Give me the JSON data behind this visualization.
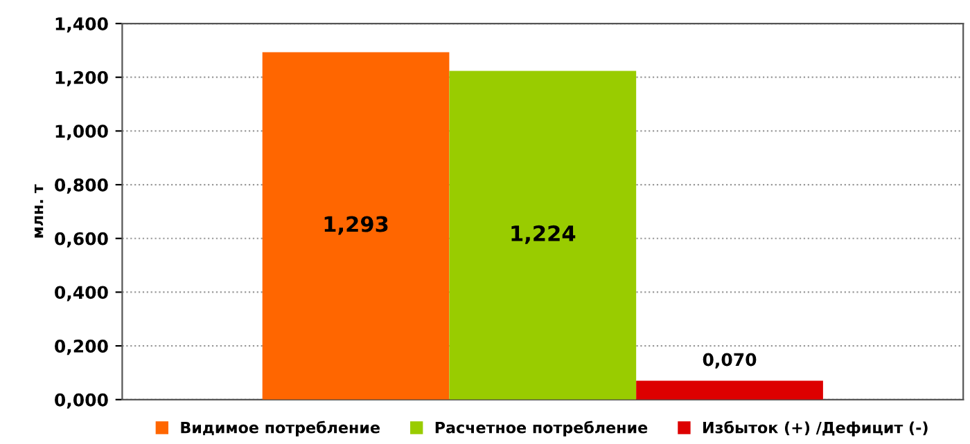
{
  "chart_data": {
    "type": "bar",
    "ylabel": "млн. т",
    "categories": [
      null
    ],
    "series": [
      {
        "name": "Видимое потребление",
        "color": "#ff6600",
        "values": [
          1.293
        ],
        "value_labels": [
          "1,293"
        ]
      },
      {
        "name": "Расчетное потребление",
        "color": "#99cc00",
        "values": [
          1.224
        ],
        "value_labels": [
          "1,224"
        ]
      },
      {
        "name": "Избыток (+) /Дефицит (-)",
        "color": "#dd0000",
        "values": [
          0.07
        ],
        "value_labels": [
          "0,070"
        ]
      }
    ],
    "ylim": [
      0,
      1.4
    ],
    "yticks": [
      {
        "value": 0,
        "label": "0,000"
      },
      {
        "value": 0.2,
        "label": "0,200"
      },
      {
        "value": 0.4,
        "label": "0,400"
      },
      {
        "value": 0.6,
        "label": "0,600"
      },
      {
        "value": 0.8,
        "label": "0,800"
      },
      {
        "value": 1.0,
        "label": "1,000"
      },
      {
        "value": 1.2,
        "label": "1,200"
      },
      {
        "value": 1.4,
        "label": "1,400"
      }
    ],
    "grid": "y",
    "legend": "bottom"
  }
}
